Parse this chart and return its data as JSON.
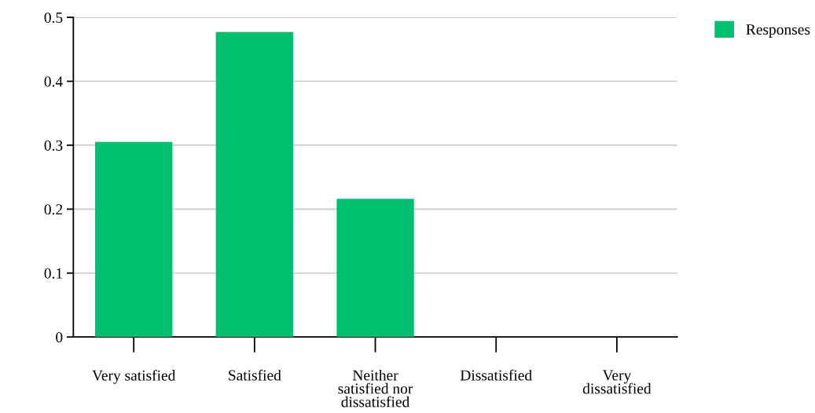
{
  "chart_data": {
    "type": "bar",
    "categories": [
      "Very satisfied",
      "Satisfied",
      "Neither\nsatisfied nor\ndissatisfied",
      "Dissatisfied",
      "Very\ndissatisfied"
    ],
    "series": [
      {
        "name": "Responses",
        "color": "#00bf6f",
        "values": [
          0.305,
          0.477,
          0.216,
          0,
          0
        ]
      }
    ],
    "ylim": [
      0,
      0.5
    ],
    "yticks": [
      {
        "value": 0,
        "label": "0"
      },
      0.1,
      0.2,
      0.3,
      0.4,
      0.5
    ],
    "grid": "y",
    "legend": "top right"
  }
}
